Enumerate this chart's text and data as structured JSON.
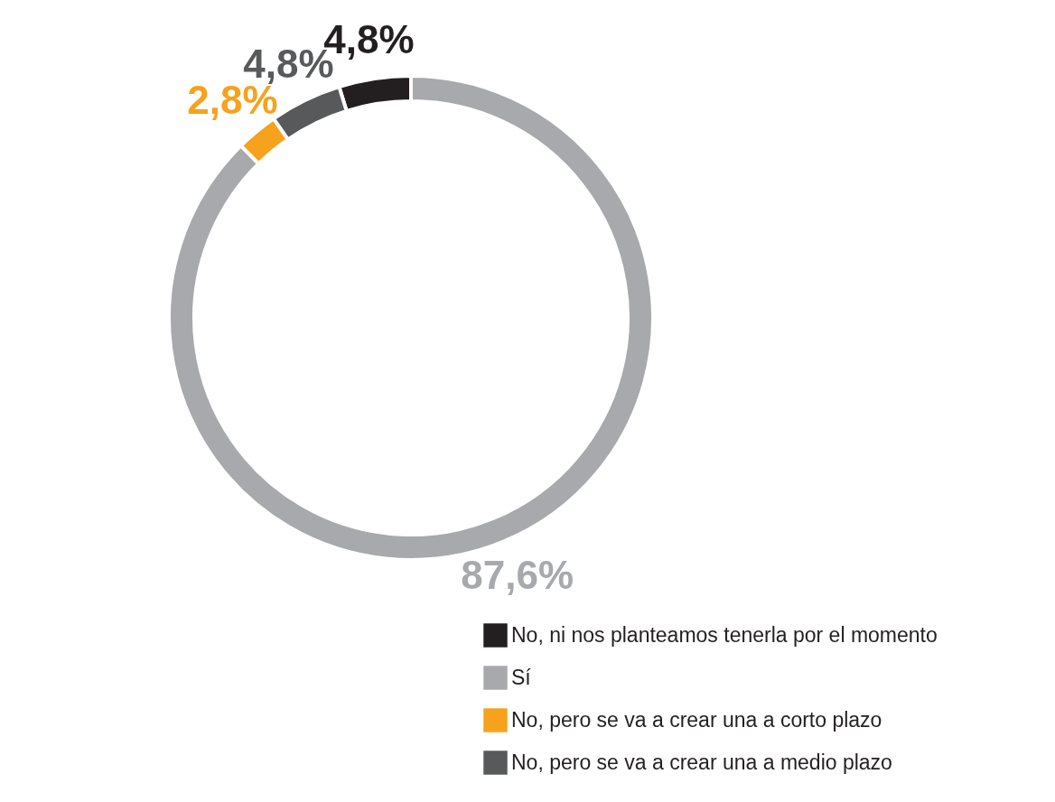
{
  "chart_data": {
    "type": "donut",
    "categories": [
      "No, ni nos planteamos tenerla por el momento",
      "Sí",
      "No, pero se va a crear una a corto plazo",
      "No, pero se va a crear una a medio plazo"
    ],
    "values": [
      4.8,
      87.6,
      2.8,
      4.8
    ],
    "value_labels": [
      "4,8%",
      "87,6%",
      "2,8%",
      "4,8%"
    ],
    "colors": [
      "#231f20",
      "#a7a9ac",
      "#f6a21d",
      "#58595b"
    ],
    "legend": "bottom right"
  }
}
